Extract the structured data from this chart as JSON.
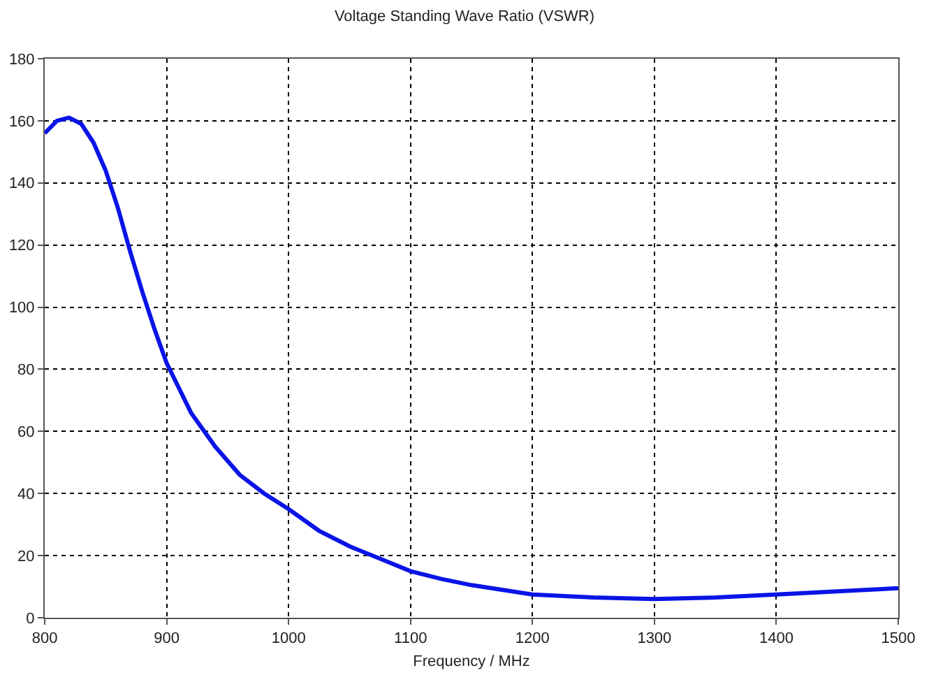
{
  "chart_data": {
    "type": "line",
    "title": "Voltage Standing Wave Ratio (VSWR)",
    "xlabel": "Frequency / MHz",
    "x": [
      800,
      810,
      820,
      830,
      840,
      850,
      860,
      870,
      880,
      890,
      900,
      920,
      940,
      960,
      980,
      1000,
      1025,
      1050,
      1075,
      1100,
      1125,
      1150,
      1175,
      1200,
      1250,
      1300,
      1350,
      1400,
      1450,
      1500
    ],
    "series": [
      {
        "color": "#0a14e6",
        "values": [
          156,
          160,
          161,
          159,
          153,
          144,
          132,
          118,
          105,
          93,
          82,
          66,
          55,
          46,
          40,
          35,
          28,
          23,
          19,
          15,
          12.5,
          10.5,
          9,
          7.5,
          6.5,
          6,
          6.5,
          7.5,
          8.5,
          9.5
        ]
      }
    ],
    "xlim": [
      800,
      1500
    ],
    "xticks": [
      800,
      900,
      1000,
      1100,
      1200,
      1300,
      1400,
      1500
    ],
    "ylim": [
      0,
      180
    ],
    "yticks": [
      0,
      20,
      40,
      60,
      80,
      100,
      120,
      140,
      160,
      180
    ],
    "grid": true,
    "legend": false,
    "marker": "none",
    "line_style": "solid"
  }
}
